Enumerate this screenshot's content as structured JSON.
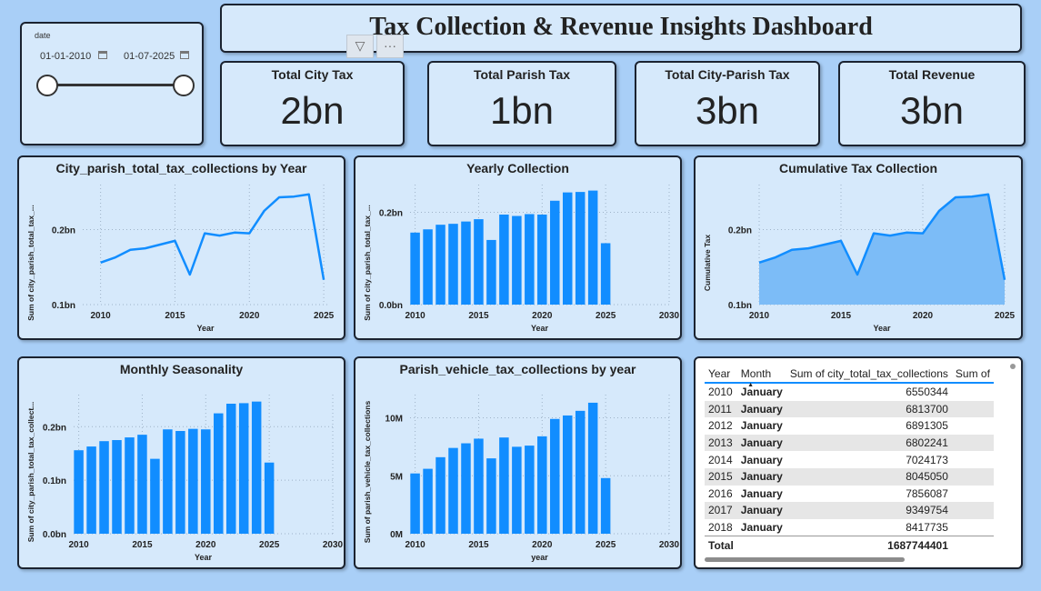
{
  "header": {
    "title": "Tax Collection & Revenue Insights Dashboard"
  },
  "slicer": {
    "label": "date",
    "start_date": "01-01-2010",
    "end_date": "01-07-2025"
  },
  "controls": {
    "filter_icon": "filter-icon",
    "more_icon": "more-options-icon"
  },
  "kpis": [
    {
      "title": "Total City Tax",
      "value": "2bn"
    },
    {
      "title": "Total Parish Tax",
      "value": "1bn"
    },
    {
      "title": "Total City-Parish Tax",
      "value": "3bn"
    },
    {
      "title": "Total Revenue",
      "value": "3bn"
    }
  ],
  "chart_data": [
    {
      "type": "line",
      "title": "City_parish_total_tax_collections by Year",
      "xlabel": "Year",
      "ylabel": "Sum of city_parish_total_tax_...",
      "x": [
        2010,
        2011,
        2012,
        2013,
        2014,
        2015,
        2016,
        2017,
        2018,
        2019,
        2020,
        2021,
        2022,
        2023,
        2024,
        2025
      ],
      "values": [
        0.156,
        0.163,
        0.173,
        0.175,
        0.18,
        0.185,
        0.14,
        0.195,
        0.192,
        0.196,
        0.195,
        0.225,
        0.243,
        0.244,
        0.247,
        0.133
      ],
      "xticks": [
        "2010",
        "2015",
        "2020",
        "2025"
      ],
      "yticks": [
        "0.1bn",
        "0.2bn"
      ],
      "color": "#118dff"
    },
    {
      "type": "bar",
      "title": "Yearly Collection",
      "xlabel": "Year",
      "ylabel": "Sum of city_parish_total_tax_...",
      "x": [
        2010,
        2011,
        2012,
        2013,
        2014,
        2015,
        2016,
        2017,
        2018,
        2019,
        2020,
        2021,
        2022,
        2023,
        2024,
        2025
      ],
      "values": [
        0.156,
        0.163,
        0.173,
        0.175,
        0.18,
        0.185,
        0.14,
        0.195,
        0.192,
        0.196,
        0.195,
        0.225,
        0.243,
        0.244,
        0.247,
        0.133
      ],
      "xticks": [
        "2010",
        "2015",
        "2020",
        "2025",
        "2030"
      ],
      "yticks": [
        "0.0bn",
        "0.2bn"
      ],
      "color": "#118dff"
    },
    {
      "type": "area",
      "title": "Cumulative Tax Collection",
      "xlabel": "Year",
      "ylabel": "Cumulative Tax",
      "x": [
        2010,
        2011,
        2012,
        2013,
        2014,
        2015,
        2016,
        2017,
        2018,
        2019,
        2020,
        2021,
        2022,
        2023,
        2024,
        2025
      ],
      "values": [
        0.156,
        0.163,
        0.173,
        0.175,
        0.18,
        0.185,
        0.14,
        0.195,
        0.192,
        0.196,
        0.195,
        0.225,
        0.243,
        0.244,
        0.247,
        0.133
      ],
      "xticks": [
        "2010",
        "2015",
        "2020",
        "2025"
      ],
      "yticks": [
        "0.1bn",
        "0.2bn"
      ],
      "color": "#118dff"
    },
    {
      "type": "bar",
      "title": "Monthly Seasonality",
      "xlabel": "Year",
      "ylabel": "Sum of city_parish_total_tax_collect...",
      "x": [
        2010,
        2011,
        2012,
        2013,
        2014,
        2015,
        2016,
        2017,
        2018,
        2019,
        2020,
        2021,
        2022,
        2023,
        2024,
        2025
      ],
      "values": [
        0.156,
        0.163,
        0.173,
        0.175,
        0.18,
        0.185,
        0.14,
        0.195,
        0.192,
        0.196,
        0.195,
        0.225,
        0.243,
        0.244,
        0.247,
        0.133
      ],
      "xticks": [
        "2010",
        "2015",
        "2020",
        "2025",
        "2030"
      ],
      "yticks": [
        "0.0bn",
        "0.1bn",
        "0.2bn"
      ],
      "color": "#118dff"
    },
    {
      "type": "bar",
      "title": "Parish_vehicle_tax_collections by year",
      "xlabel": "year",
      "ylabel": "Sum of parish_vehicle_tax_collections",
      "x": [
        2010,
        2011,
        2012,
        2013,
        2014,
        2015,
        2016,
        2017,
        2018,
        2019,
        2020,
        2021,
        2022,
        2023,
        2024,
        2025
      ],
      "values": [
        5.2,
        5.6,
        6.6,
        7.4,
        7.8,
        8.2,
        6.5,
        8.3,
        7.5,
        7.6,
        8.4,
        9.9,
        10.2,
        10.6,
        11.3,
        4.8
      ],
      "xticks": [
        "2010",
        "2015",
        "2020",
        "2025",
        "2030"
      ],
      "yticks": [
        "0M",
        "5M",
        "10M"
      ],
      "color": "#118dff"
    }
  ],
  "table": {
    "columns": [
      "Year",
      "Month",
      "Sum of city_total_tax_collections",
      "Sum of"
    ],
    "rows": [
      [
        "2010",
        "January",
        "6550344"
      ],
      [
        "2011",
        "January",
        "6813700"
      ],
      [
        "2012",
        "January",
        "6891305"
      ],
      [
        "2013",
        "January",
        "6802241"
      ],
      [
        "2014",
        "January",
        "7024173"
      ],
      [
        "2015",
        "January",
        "8045050"
      ],
      [
        "2016",
        "January",
        "7856087"
      ],
      [
        "2017",
        "January",
        "9349754"
      ],
      [
        "2018",
        "January",
        "8417735"
      ]
    ],
    "total_label": "Total",
    "total_value": "1687744401"
  }
}
